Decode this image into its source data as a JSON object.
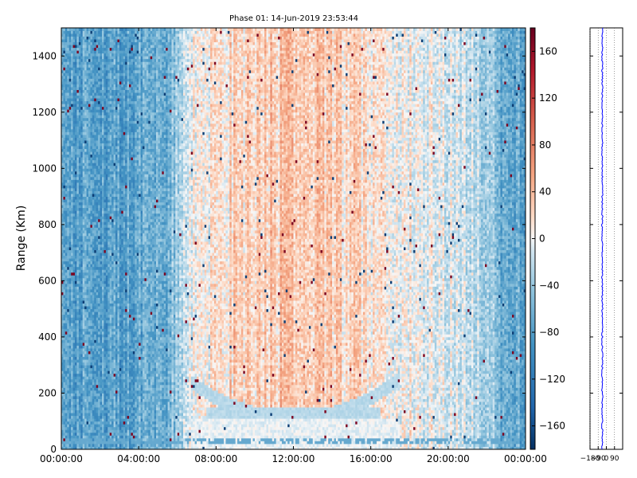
{
  "chart_data": [
    {
      "type": "heatmap",
      "title": "Phase 01: 14-Jun-2019 23:53:44",
      "xlabel": "",
      "ylabel": "Range (Km)",
      "x_ticks": [
        "00:00:00",
        "04:00:00",
        "08:00:00",
        "12:00:00",
        "16:00:00",
        "20:00:00",
        "00:00:00"
      ],
      "x_range_hours": [
        0,
        24
      ],
      "y_ticks": [
        0,
        200,
        400,
        600,
        800,
        1000,
        1200,
        1400
      ],
      "ylim": [
        0,
        1500
      ],
      "grid": false,
      "colorscale": "RdBu_r",
      "colorbar": {
        "ticks": [
          160,
          120,
          80,
          40,
          0,
          -40,
          -80,
          -120,
          -160
        ],
        "range": [
          -180,
          180
        ]
      },
      "value_profile_by_hour": [
        {
          "hour": 0,
          "value": -75
        },
        {
          "hour": 3,
          "value": -80
        },
        {
          "hour": 5.5,
          "value": -70
        },
        {
          "hour": 6.7,
          "value": -5
        },
        {
          "hour": 9,
          "value": 25
        },
        {
          "hour": 12,
          "value": 35
        },
        {
          "hour": 15,
          "value": 22
        },
        {
          "hour": 17.5,
          "value": 5
        },
        {
          "hour": 21,
          "value": -15
        },
        {
          "hour": 22.5,
          "value": -55
        },
        {
          "hour": 24,
          "value": -75
        }
      ]
    },
    {
      "type": "line",
      "title": "",
      "xlabel": "",
      "ylabel": "",
      "x_ticks": [
        "−180",
        "−90",
        "0",
        "90"
      ],
      "xlim": [
        -180,
        180
      ],
      "ylim": [
        0,
        1500
      ],
      "grid": true,
      "series": [
        {
          "color": "#0000ff",
          "values_description_mean": -45
        }
      ]
    }
  ],
  "colors": {
    "axes": "#000000",
    "line": "#0000ff",
    "grid": "#555555"
  }
}
